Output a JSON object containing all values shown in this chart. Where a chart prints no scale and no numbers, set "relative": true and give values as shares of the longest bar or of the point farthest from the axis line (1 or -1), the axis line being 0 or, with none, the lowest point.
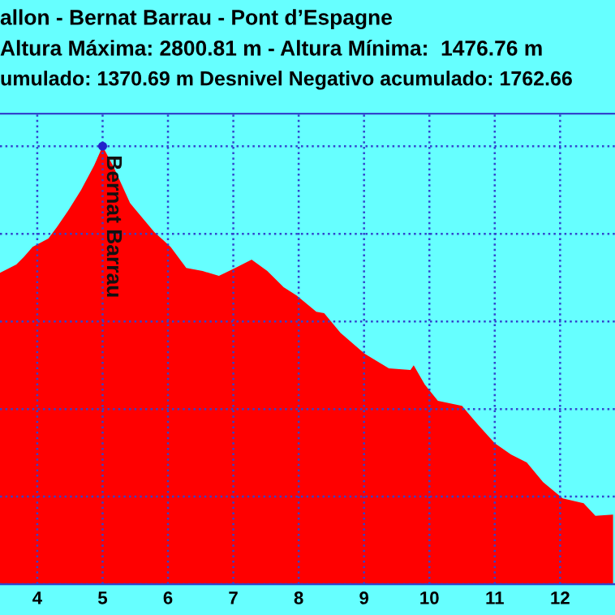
{
  "chart_data": {
    "type": "area",
    "title": "allon - Bernat Barrau - Pont d’Espagne",
    "subtitle": "Altura Máxima: 2800.81 m - Altura Mínima:  1476.76 m",
    "annotations": [
      "umulado: 1370.69 m Desnivel Negativo acumulado: 1762.66",
      {
        "text": "Bernat Barrau",
        "x": 5.0,
        "y": 1.0
      }
    ],
    "relative": true,
    "x": [
      3.43,
      3.68,
      3.8,
      3.93,
      4.17,
      4.3,
      4.47,
      4.67,
      4.87,
      5.0,
      5.17,
      5.42,
      5.79,
      6.04,
      6.28,
      6.53,
      6.78,
      7.03,
      7.28,
      7.52,
      7.77,
      7.97,
      8.27,
      8.39,
      8.64,
      9.01,
      9.38,
      9.71,
      9.76,
      9.93,
      10.13,
      10.5,
      10.75,
      11.0,
      11.25,
      11.49,
      11.74,
      12.04,
      12.36,
      12.54,
      12.81
    ],
    "series": [
      {
        "color": "#ff0000",
        "values": [
          0.711,
          0.73,
          0.748,
          0.77,
          0.789,
          0.815,
          0.852,
          0.9,
          0.956,
          1.0,
          0.952,
          0.87,
          0.804,
          0.77,
          0.722,
          0.715,
          0.704,
          0.722,
          0.741,
          0.715,
          0.678,
          0.659,
          0.622,
          0.619,
          0.574,
          0.526,
          0.493,
          0.489,
          0.5,
          0.456,
          0.419,
          0.407,
          0.363,
          0.322,
          0.296,
          0.278,
          0.233,
          0.196,
          0.185,
          0.156,
          0.159
        ]
      }
    ],
    "xlim": [
      3.43,
      12.84
    ],
    "xticks": [
      4,
      5,
      6,
      7,
      8,
      9,
      10,
      11,
      12
    ],
    "grid": true,
    "tick_labels": "x"
  }
}
